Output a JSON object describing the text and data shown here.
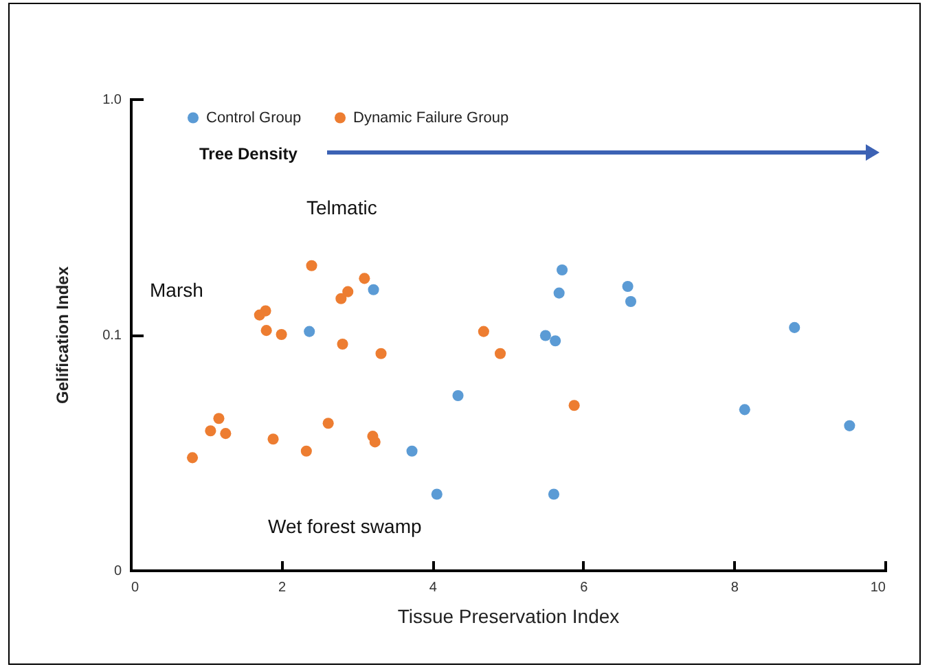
{
  "chart_data": {
    "type": "scatter",
    "xlabel": "Tissue Preservation Index",
    "ylabel": "Gelification Index",
    "annotations": [
      "Tree Density",
      "Telmatic",
      "Marsh",
      "Wet forest swamp"
    ],
    "series": [
      {
        "name": "Control Group",
        "color": "#5b9bd5",
        "x": [
          2.37,
          3.22,
          5.72,
          5.68,
          6.59,
          6.63,
          5.5,
          5.63,
          8.8,
          4.34,
          8.14,
          9.53,
          3.73,
          4.06,
          5.61
        ],
        "values": [
          0.103,
          0.155,
          0.188,
          0.15,
          0.16,
          0.138,
          0.099,
          0.094,
          0.107,
          0.055,
          0.048,
          0.041,
          0.032,
          0.021,
          0.021
        ]
      },
      {
        "name": "Dynamic Failure Group",
        "color": "#ed7d31",
        "x": [
          2.4,
          3.1,
          2.88,
          2.79,
          1.79,
          1.71,
          1.8,
          2.0,
          2.81,
          3.32,
          4.68,
          4.9,
          5.88,
          1.17,
          1.06,
          1.26,
          2.62,
          1.89,
          3.21,
          3.24,
          2.33,
          0.82
        ],
        "values": [
          0.196,
          0.173,
          0.152,
          0.142,
          0.126,
          0.121,
          0.104,
          0.1,
          0.091,
          0.083,
          0.103,
          0.083,
          0.05,
          0.044,
          0.039,
          0.038,
          0.042,
          0.036,
          0.037,
          0.035,
          0.032,
          0.03
        ]
      }
    ],
    "xlim": [
      0,
      10
    ],
    "xticks": [
      0,
      2,
      4,
      6,
      8,
      10
    ],
    "ylim": [
      0.01,
      1
    ],
    "yticks": [
      {
        "value": 0.01,
        "label": "0"
      },
      0.1,
      {
        "value": 1,
        "label": "1.0"
      }
    ],
    "log": "y",
    "grid": false,
    "legend": "top left",
    "marker": "circle"
  }
}
